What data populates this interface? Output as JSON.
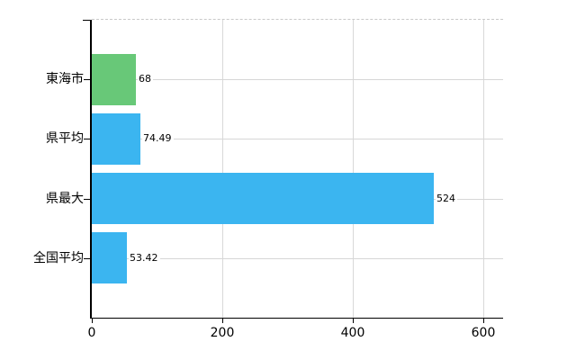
{
  "chart": {
    "background_color": "#ffffff",
    "axis_color": "#000000",
    "grid_color_horizontal": "#d6d6d6",
    "grid_color_vertical": "#d9d9d9",
    "top_border_color": "#c9c9c9",
    "text_color": "#000000"
  },
  "chart_data": {
    "type": "bar",
    "orientation": "horizontal",
    "title": "",
    "xlabel": "",
    "ylabel": "",
    "categories": [
      "東海市",
      "県平均",
      "県最大",
      "全国平均"
    ],
    "values": [
      68,
      74.49,
      524,
      53.42
    ],
    "value_labels": [
      "68",
      "74.49",
      "524",
      "53.42"
    ],
    "bar_colors": [
      "#68c878",
      "#3bb5f0",
      "#3bb5f0",
      "#3bb5f0"
    ],
    "xlim": [
      0,
      630
    ],
    "xticks": [
      0,
      200,
      400,
      600
    ],
    "xtick_labels": [
      "0",
      "200",
      "400",
      "600"
    ],
    "grid": "on",
    "legend": "none"
  }
}
